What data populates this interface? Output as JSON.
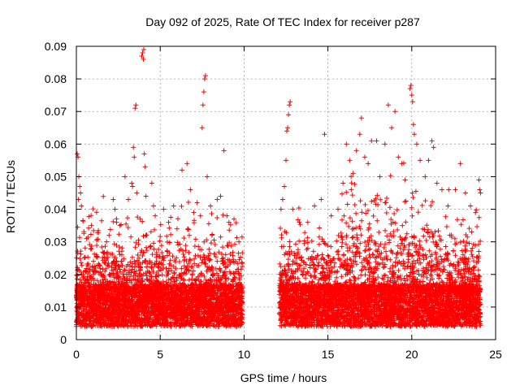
{
  "chart_data": {
    "type": "scatter",
    "title": "Day 092 of 2025, Rate Of TEC Index for receiver p287",
    "xlabel": "GPS time / hours",
    "ylabel": "ROTI / TECUs",
    "xlim": [
      0,
      25
    ],
    "ylim": [
      0,
      0.09
    ],
    "x_ticks": [
      "0",
      "5",
      "10",
      "15",
      "20",
      "25"
    ],
    "y_ticks": [
      "0",
      "0.01",
      "0.02",
      "0.03",
      "0.04",
      "0.05",
      "0.06",
      "0.07",
      "0.08",
      "0.09"
    ],
    "grid": true,
    "legend": "none",
    "marker": "plus",
    "series_color": "#ff0000",
    "coverage": [
      [
        0,
        9.9
      ],
      [
        12.1,
        24.1
      ]
    ],
    "series": [
      {
        "values": [
          [
            0.05,
            0.057
          ],
          [
            0.1,
            0.056
          ],
          [
            0.15,
            0.05
          ],
          [
            0.2,
            0.047
          ],
          [
            0.25,
            0.045
          ],
          [
            0.3,
            0.041
          ],
          [
            0.12,
            0.043
          ],
          [
            0.6,
            0.031
          ],
          [
            1.2,
            0.026
          ],
          [
            1.8,
            0.03
          ],
          [
            2.2,
            0.043
          ],
          [
            2.3,
            0.04
          ],
          [
            2.4,
            0.036
          ],
          [
            2.6,
            0.035
          ],
          [
            2.9,
            0.05
          ],
          [
            3.1,
            0.043
          ],
          [
            3.3,
            0.048
          ],
          [
            3.35,
            0.047
          ],
          [
            3.4,
            0.059
          ],
          [
            3.45,
            0.056
          ],
          [
            3.5,
            0.071
          ],
          [
            3.55,
            0.072
          ],
          [
            3.6,
            0.045
          ],
          [
            3.8,
            0.037
          ],
          [
            3.9,
            0.087
          ],
          [
            3.95,
            0.088
          ],
          [
            4.0,
            0.086
          ],
          [
            4.02,
            0.089
          ],
          [
            4.05,
            0.057
          ],
          [
            4.1,
            0.053
          ],
          [
            4.15,
            0.044
          ],
          [
            4.5,
            0.048
          ],
          [
            4.6,
            0.041
          ],
          [
            4.7,
            0.038
          ],
          [
            5.2,
            0.04
          ],
          [
            5.5,
            0.036
          ],
          [
            5.8,
            0.041
          ],
          [
            6.0,
            0.034
          ],
          [
            6.3,
            0.052
          ],
          [
            6.6,
            0.054
          ],
          [
            6.8,
            0.046
          ],
          [
            7.0,
            0.039
          ],
          [
            7.2,
            0.042
          ],
          [
            7.4,
            0.038
          ],
          [
            7.5,
            0.065
          ],
          [
            7.55,
            0.072
          ],
          [
            7.6,
            0.076
          ],
          [
            7.65,
            0.08
          ],
          [
            7.7,
            0.081
          ],
          [
            7.8,
            0.05
          ],
          [
            8.0,
            0.041
          ],
          [
            8.4,
            0.043
          ],
          [
            8.6,
            0.044
          ],
          [
            8.8,
            0.058
          ],
          [
            9.1,
            0.036
          ],
          [
            9.4,
            0.037
          ],
          [
            12.2,
            0.04
          ],
          [
            12.3,
            0.043
          ],
          [
            12.4,
            0.047
          ],
          [
            12.5,
            0.055
          ],
          [
            12.55,
            0.064
          ],
          [
            12.6,
            0.065
          ],
          [
            12.65,
            0.069
          ],
          [
            12.7,
            0.072
          ],
          [
            12.75,
            0.073
          ],
          [
            12.9,
            0.04
          ],
          [
            13.3,
            0.036
          ],
          [
            13.8,
            0.036
          ],
          [
            14.2,
            0.041
          ],
          [
            14.6,
            0.043
          ],
          [
            14.8,
            0.063
          ],
          [
            15.2,
            0.038
          ],
          [
            15.6,
            0.04
          ],
          [
            15.9,
            0.048
          ],
          [
            16.1,
            0.06
          ],
          [
            16.3,
            0.055
          ],
          [
            16.5,
            0.051
          ],
          [
            16.7,
            0.058
          ],
          [
            16.9,
            0.063
          ],
          [
            17.0,
            0.068
          ],
          [
            17.2,
            0.056
          ],
          [
            17.4,
            0.054
          ],
          [
            17.6,
            0.061
          ],
          [
            17.9,
            0.061
          ],
          [
            18.1,
            0.05
          ],
          [
            18.4,
            0.06
          ],
          [
            18.6,
            0.072
          ],
          [
            18.8,
            0.065
          ],
          [
            19.0,
            0.07
          ],
          [
            19.2,
            0.056
          ],
          [
            19.4,
            0.054
          ],
          [
            19.6,
            0.049
          ],
          [
            19.9,
            0.077
          ],
          [
            19.95,
            0.078
          ],
          [
            20.0,
            0.075
          ],
          [
            20.05,
            0.073
          ],
          [
            20.1,
            0.066
          ],
          [
            20.15,
            0.063
          ],
          [
            20.3,
            0.06
          ],
          [
            20.5,
            0.055
          ],
          [
            20.8,
            0.05
          ],
          [
            21.0,
            0.055
          ],
          [
            21.2,
            0.061
          ],
          [
            21.3,
            0.059
          ],
          [
            21.5,
            0.048
          ],
          [
            21.8,
            0.046
          ],
          [
            22.2,
            0.046
          ],
          [
            22.6,
            0.046
          ],
          [
            22.9,
            0.054
          ],
          [
            23.2,
            0.045
          ],
          [
            23.5,
            0.041
          ],
          [
            23.8,
            0.039
          ],
          [
            24.0,
            0.049
          ],
          [
            24.05,
            0.046
          ],
          [
            24.1,
            0.045
          ]
        ]
      }
    ]
  }
}
